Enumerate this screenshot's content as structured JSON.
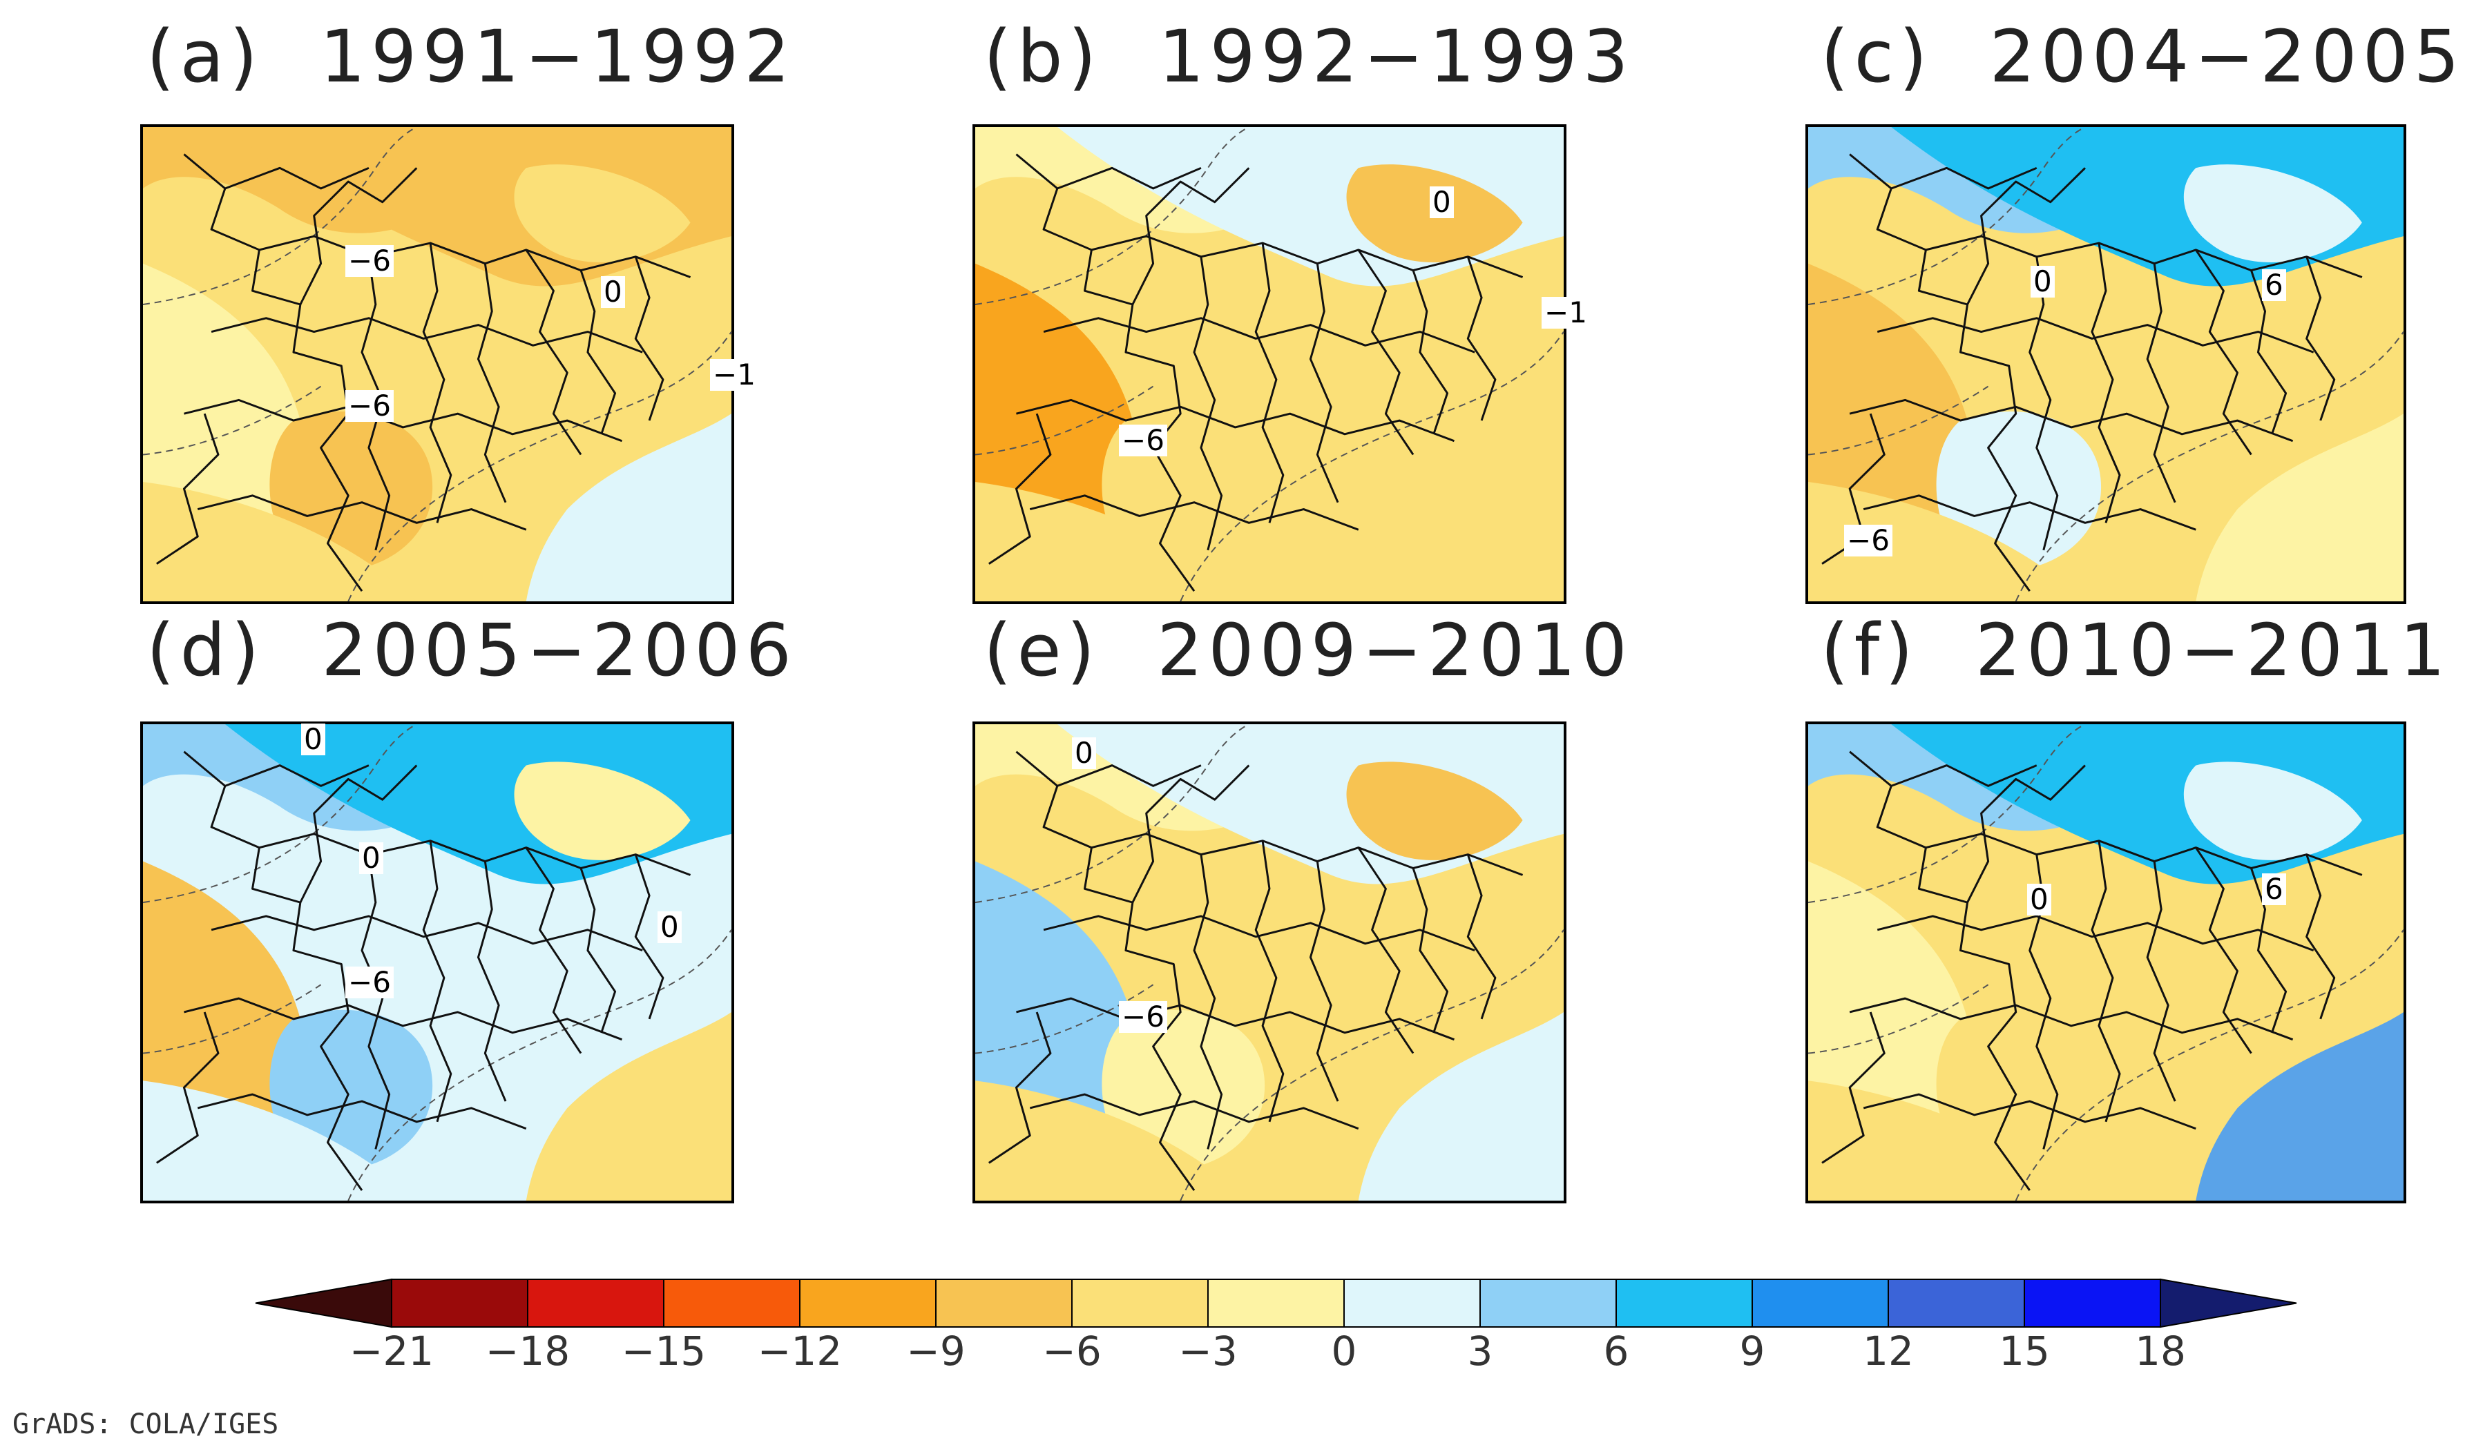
{
  "panels": [
    {
      "id": "a",
      "title": "(a)  1991−1992",
      "labels": [
        "−6",
        "−6",
        "0",
        "−1"
      ],
      "fills": [
        "#fbe078",
        "#f7c352",
        "#f7c352",
        "#fbe078",
        "#fdf3a4",
        "#dff6fb",
        "#f7c352",
        "#fbe078"
      ]
    },
    {
      "id": "b",
      "title": "(b)  1992−1993",
      "labels": [
        "0",
        "−6",
        "−1"
      ],
      "fills": [
        "#fbe078",
        "#fdf3a4",
        "#dff6fb",
        "#f7c352",
        "#f9a51e",
        "#fbe078",
        "#fbe078",
        "#fbe078"
      ]
    },
    {
      "id": "c",
      "title": "(c)  2004−2005",
      "labels": [
        "6",
        "0",
        "−6"
      ],
      "fills": [
        "#fbe078",
        "#8fd0f6",
        "#1fbff2",
        "#dff6fb",
        "#f7c352",
        "#fdf3a4",
        "#dff6fb",
        "#fbe078"
      ]
    },
    {
      "id": "d",
      "title": "(d)  2005−2006",
      "labels": [
        "0",
        "0",
        "−6",
        "0"
      ],
      "fills": [
        "#dff6fb",
        "#8fd0f6",
        "#1fbff2",
        "#fdf3a4",
        "#f7c352",
        "#fbe078",
        "#8fd0f6",
        "#dff6fb"
      ]
    },
    {
      "id": "e",
      "title": "(e)  2009−2010",
      "labels": [
        "0",
        "−6"
      ],
      "fills": [
        "#fbe078",
        "#fdf3a4",
        "#dff6fb",
        "#f7c352",
        "#8fd0f6",
        "#dff6fb",
        "#fdf3a4",
        "#fbe078"
      ]
    },
    {
      "id": "f",
      "title": "(f)  2010−2011",
      "labels": [
        "6",
        "0"
      ],
      "fills": [
        "#fbe078",
        "#8fd0f6",
        "#1fbff2",
        "#dff6fb",
        "#fdf3a4",
        "#5aa3e8",
        "#fbe078",
        "#fbe078"
      ]
    }
  ],
  "colorbar": {
    "ticks": [
      "−21",
      "−18",
      "−15",
      "−12",
      "−9",
      "−6",
      "−3",
      "0",
      "3",
      "6",
      "9",
      "12",
      "15",
      "18"
    ],
    "colors": [
      "#3a0a0a",
      "#9a0a0a",
      "#d8160e",
      "#f75a0a",
      "#f9a51e",
      "#f7c352",
      "#fbe078",
      "#fdf3a4",
      "#dff6fb",
      "#8fd0f6",
      "#1fbff2",
      "#1f8fef",
      "#3b64d8",
      "#0a14f5",
      "#141c6e"
    ]
  },
  "footer": "GrADS: COLA/IGES"
}
